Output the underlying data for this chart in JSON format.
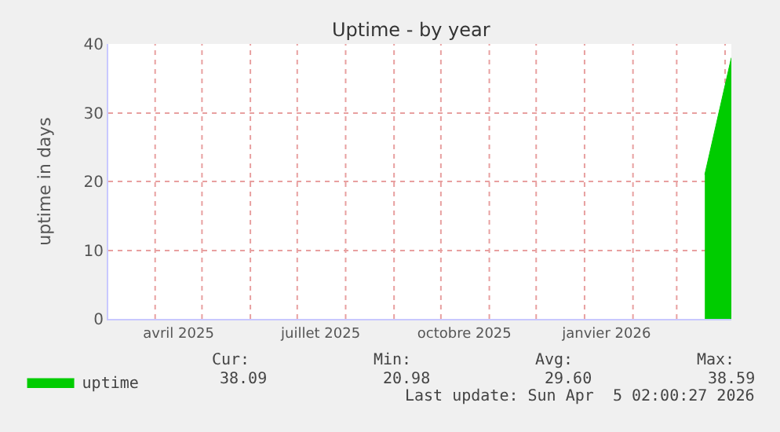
{
  "chart_data": {
    "type": "area",
    "title": "Uptime - by year",
    "ylabel": "uptime in days",
    "series": [
      {
        "name": "uptime",
        "color": "#00cc00",
        "x": [
          "2026-03-19",
          "2026-04-05"
        ],
        "values": [
          21,
          38
        ]
      }
    ],
    "xlim": [
      "2025-03-02",
      "2026-04-05"
    ],
    "xticks": [
      {
        "value": "2025-04-01",
        "label": null
      },
      {
        "value": "2025-04-16",
        "label": "avril 2025"
      },
      {
        "value": "2025-05-01",
        "label": null
      },
      {
        "value": "2025-06-01",
        "label": null
      },
      {
        "value": "2025-07-01",
        "label": null
      },
      {
        "value": "2025-07-16",
        "label": "juillet 2025"
      },
      {
        "value": "2025-08-01",
        "label": null
      },
      {
        "value": "2025-09-01",
        "label": null
      },
      {
        "value": "2025-10-01",
        "label": null
      },
      {
        "value": "2025-10-16",
        "label": "octobre 2025"
      },
      {
        "value": "2025-11-01",
        "label": null
      },
      {
        "value": "2025-12-01",
        "label": null
      },
      {
        "value": "2026-01-01",
        "label": null
      },
      {
        "value": "2026-01-15",
        "label": "janvier 2026"
      },
      {
        "value": "2026-02-01",
        "label": null
      },
      {
        "value": "2026-03-01",
        "label": null
      },
      {
        "value": "2026-04-01",
        "label": null
      }
    ],
    "ylim": [
      0,
      40
    ],
    "yticks": [
      0,
      10,
      20,
      30,
      40
    ],
    "grid": true,
    "legend": "bottom left",
    "annotations": [
      "Cur:",
      "Min:",
      "Avg:",
      "Max:",
      "38.09",
      "20.98",
      "29.60",
      "38.59",
      "Last update: Sun Apr  5 02:00:27 2026"
    ]
  }
}
